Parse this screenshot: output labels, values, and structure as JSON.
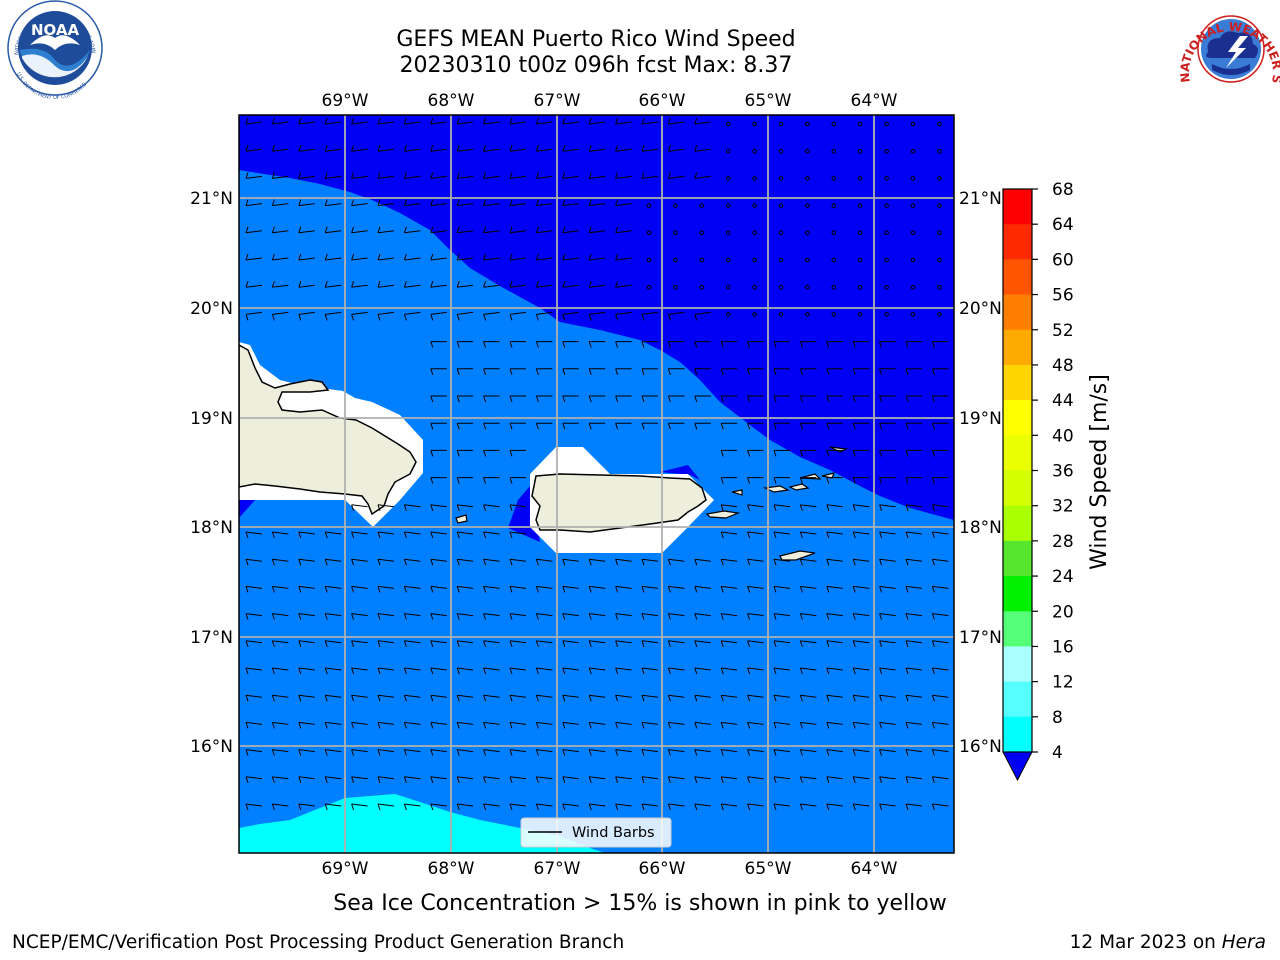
{
  "title": {
    "line1": "GEFS MEAN Puerto Rico Wind Speed",
    "line2": "20230310 t00z 096h fcst   Max: 8.37"
  },
  "subtitle": "Sea Ice Concentration > 15% is shown in pink to yellow",
  "footer": {
    "left": "NCEP/EMC/Verification Post Processing Product Generation Branch",
    "right_date": "12 Mar 2023 on ",
    "right_machine": "Hera"
  },
  "map": {
    "lon_labels": [
      "69°W",
      "68°W",
      "67°W",
      "66°W",
      "65°W",
      "64°W"
    ],
    "lat_labels": [
      "21°N",
      "20°N",
      "19°N",
      "18°N",
      "17°N",
      "16°N"
    ],
    "legend_label": "Wind Barbs",
    "land_color": "#eeeedd",
    "ocean_low_color": "#0000f5",
    "ocean_mid_color": "#0080ff",
    "ocean_high_color": "#00ffff"
  },
  "colorbar": {
    "label": "Wind Speed [m/s]",
    "ticks": [
      "68",
      "64",
      "60",
      "56",
      "52",
      "48",
      "44",
      "40",
      "36",
      "32",
      "28",
      "24",
      "20",
      "16",
      "12",
      "8",
      "4"
    ],
    "colors": [
      "#ff0000",
      "#ff2a00",
      "#ff5500",
      "#ff8000",
      "#ffaa00",
      "#ffd400",
      "#ffff00",
      "#eaff00",
      "#d4ff00",
      "#aaff00",
      "#55e62d",
      "#00f000",
      "#55ff77",
      "#aaffff",
      "#55ffff",
      "#00ffff",
      "#0080ff"
    ],
    "extend_color": "#0000f5"
  },
  "logos": {
    "noaa_text": "NOAA",
    "noaa_ring": "NATIONAL OCEANIC AND ATMOSPHERIC ADMINISTRATION",
    "noaa_ring_bottom": "U.S. DEPARTMENT OF COMMERCE",
    "nws_ring": "NATIONAL WEATHER SERVICE"
  }
}
